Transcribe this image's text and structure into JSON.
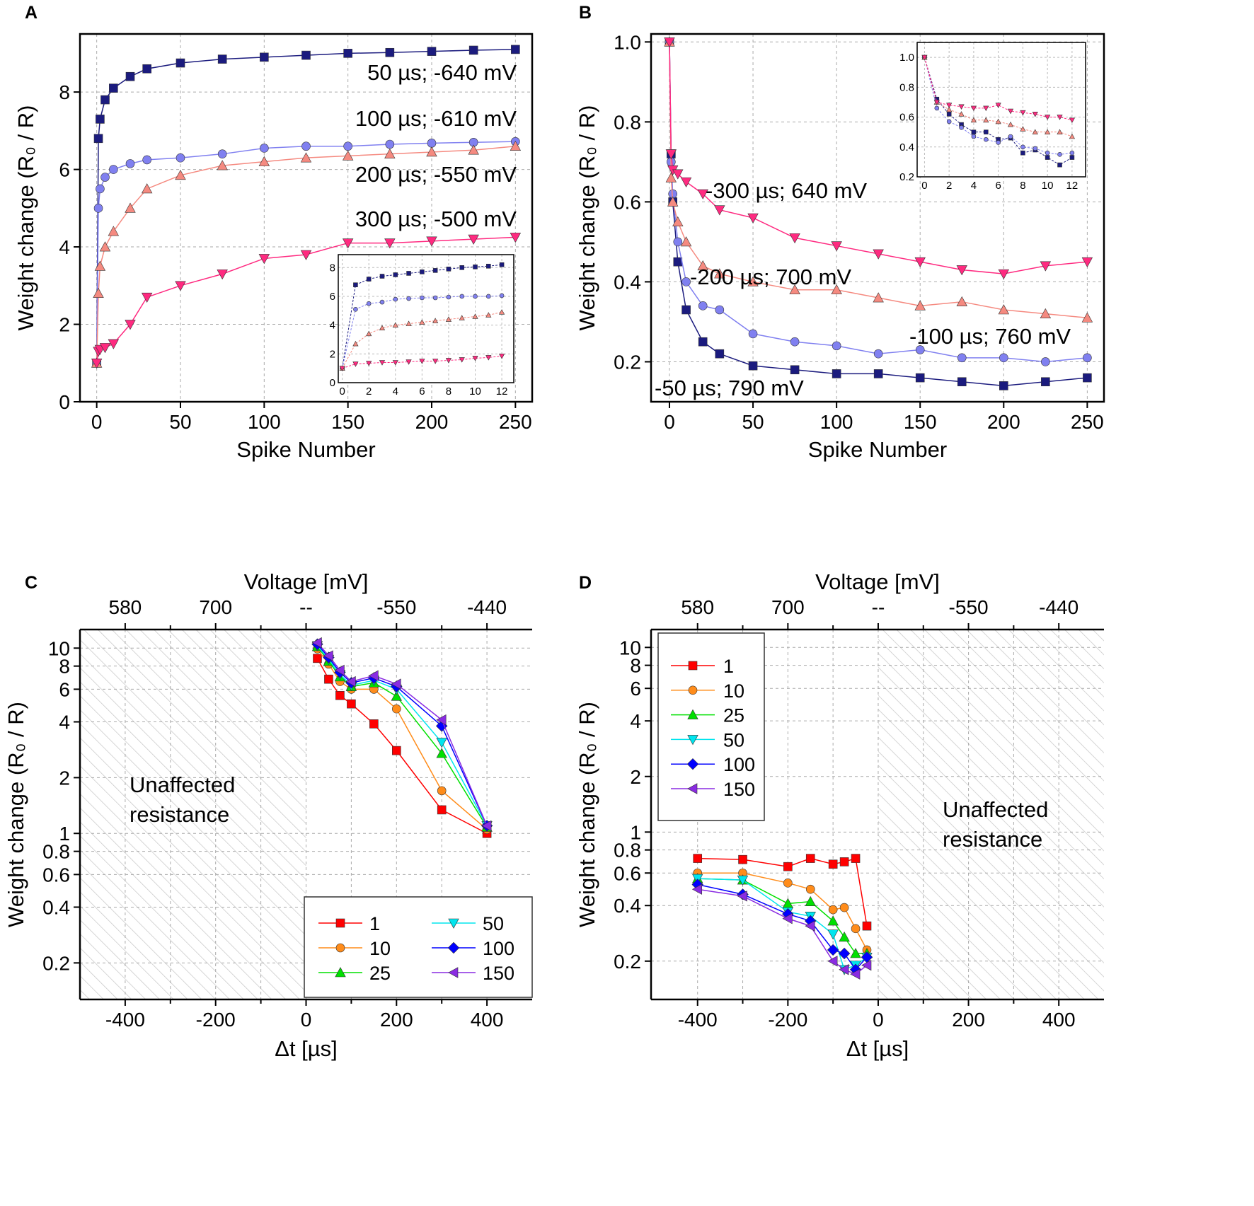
{
  "chart_data": [
    {
      "panel": "A",
      "type": "scatter",
      "xlabel": "Spike Number",
      "ylabel": "Weight change (R₀ / R)",
      "xlim": [
        -10,
        260
      ],
      "ylim": [
        0,
        9.5
      ],
      "log_y": false,
      "grid": true,
      "xticks": [
        0,
        50,
        100,
        150,
        200,
        250
      ],
      "yticks": [
        0,
        2,
        4,
        6,
        8
      ],
      "x": [
        0,
        1,
        2,
        5,
        10,
        20,
        30,
        50,
        75,
        100,
        125,
        150,
        175,
        200,
        225,
        250
      ],
      "series": [
        {
          "name": "50 µs; -640 mV",
          "color": "#1b1b7e",
          "marker": "square",
          "values": [
            1,
            6.8,
            7.3,
            7.8,
            8.1,
            8.4,
            8.6,
            8.75,
            8.85,
            8.9,
            8.95,
            9.0,
            9.02,
            9.05,
            9.08,
            9.1
          ]
        },
        {
          "name": "100 µs; -610 mV",
          "color": "#8080f0",
          "marker": "circle",
          "values": [
            1,
            5.0,
            5.5,
            5.8,
            6.0,
            6.15,
            6.25,
            6.3,
            6.4,
            6.55,
            6.6,
            6.6,
            6.65,
            6.68,
            6.7,
            6.72
          ]
        },
        {
          "name": "200 µs; -550 mV",
          "color": "#f58a80",
          "marker": "triangle-up",
          "values": [
            1,
            2.8,
            3.5,
            4.0,
            4.4,
            5.0,
            5.5,
            5.85,
            6.1,
            6.2,
            6.3,
            6.35,
            6.4,
            6.45,
            6.5,
            6.6
          ]
        },
        {
          "name": "300 µs; -500 mV",
          "color": "#ff2a80",
          "marker": "triangle-down",
          "values": [
            1,
            1.3,
            1.35,
            1.4,
            1.5,
            2.0,
            2.7,
            3.0,
            3.3,
            3.7,
            3.8,
            4.1,
            4.1,
            4.15,
            4.2,
            4.25
          ]
        }
      ],
      "inset": {
        "xlim": [
          -0.3,
          12.9
        ],
        "ylim": [
          0,
          8.9
        ],
        "xticks": [
          0,
          2,
          4,
          6,
          8,
          10,
          12
        ],
        "yticks": [
          0,
          2,
          4,
          6,
          8
        ],
        "x": [
          0,
          1,
          2,
          3,
          4,
          5,
          6,
          7,
          8,
          9,
          10,
          11,
          12
        ],
        "values": [
          [
            1,
            6.8,
            7.2,
            7.4,
            7.5,
            7.6,
            7.7,
            7.8,
            7.9,
            8.0,
            8.05,
            8.1,
            8.2
          ],
          [
            1,
            5.1,
            5.5,
            5.6,
            5.8,
            5.85,
            5.9,
            5.9,
            5.95,
            6.0,
            6.0,
            6.0,
            6.05
          ],
          [
            1,
            2.7,
            3.4,
            3.8,
            4.0,
            4.1,
            4.2,
            4.3,
            4.4,
            4.5,
            4.6,
            4.7,
            4.9
          ],
          [
            1,
            1.3,
            1.35,
            1.4,
            1.4,
            1.45,
            1.5,
            1.5,
            1.55,
            1.6,
            1.7,
            1.75,
            1.85
          ]
        ]
      }
    },
    {
      "panel": "B",
      "type": "scatter",
      "xlabel": "Spike Number",
      "ylabel": "Weight change (R₀ / R)",
      "xlim": [
        -11,
        260
      ],
      "ylim": [
        0.1,
        1.02
      ],
      "log_y": false,
      "grid": true,
      "xticks": [
        0,
        50,
        100,
        150,
        200,
        250
      ],
      "yticks": [
        0.2,
        0.4,
        0.6,
        0.8,
        1.0
      ],
      "x": [
        0,
        1,
        2,
        5,
        10,
        20,
        30,
        50,
        75,
        100,
        125,
        150,
        175,
        200,
        225,
        250
      ],
      "series": [
        {
          "name": "-50 µs; 790 mV",
          "color": "#1b1b7e",
          "marker": "square",
          "values": [
            1,
            0.72,
            0.6,
            0.45,
            0.33,
            0.25,
            0.22,
            0.19,
            0.18,
            0.17,
            0.17,
            0.16,
            0.15,
            0.14,
            0.15,
            0.16
          ]
        },
        {
          "name": "-100 µs; 760 mV",
          "color": "#8080f0",
          "marker": "circle",
          "values": [
            1,
            0.7,
            0.62,
            0.5,
            0.4,
            0.34,
            0.33,
            0.27,
            0.25,
            0.24,
            0.22,
            0.23,
            0.21,
            0.21,
            0.2,
            0.21
          ]
        },
        {
          "name": "-200 µs; 700 mV",
          "color": "#f58a80",
          "marker": "triangle-up",
          "values": [
            1,
            0.66,
            0.6,
            0.55,
            0.5,
            0.44,
            0.42,
            0.4,
            0.38,
            0.38,
            0.36,
            0.34,
            0.35,
            0.33,
            0.32,
            0.31
          ]
        },
        {
          "name": "-300 µs; 640 mV",
          "color": "#ff2a80",
          "marker": "triangle-down",
          "values": [
            1,
            0.72,
            0.68,
            0.67,
            0.65,
            0.62,
            0.58,
            0.56,
            0.51,
            0.49,
            0.47,
            0.45,
            0.43,
            0.42,
            0.44,
            0.45
          ]
        }
      ],
      "inset": {
        "xlim": [
          -0.6,
          13.1
        ],
        "ylim": [
          0.2,
          1.1
        ],
        "xticks": [
          0,
          2,
          4,
          6,
          8,
          10,
          12
        ],
        "yticks": [
          0.2,
          0.4,
          0.6,
          0.8,
          1.0
        ],
        "x": [
          0,
          1,
          2,
          3,
          4,
          5,
          6,
          7,
          8,
          9,
          10,
          11,
          12
        ],
        "values": [
          [
            1,
            0.72,
            0.62,
            0.55,
            0.5,
            0.5,
            0.45,
            0.46,
            0.36,
            0.38,
            0.33,
            0.28,
            0.33
          ],
          [
            1,
            0.66,
            0.57,
            0.53,
            0.47,
            0.45,
            0.43,
            0.47,
            0.4,
            0.39,
            0.36,
            0.35,
            0.36
          ],
          [
            1,
            0.7,
            0.65,
            0.62,
            0.58,
            0.58,
            0.57,
            0.55,
            0.52,
            0.5,
            0.5,
            0.5,
            0.47
          ],
          [
            1,
            0.7,
            0.68,
            0.67,
            0.66,
            0.66,
            0.68,
            0.64,
            0.63,
            0.62,
            0.6,
            0.6,
            0.58
          ]
        ]
      }
    },
    {
      "panel": "C",
      "type": "line",
      "xlabel": "Δt [µs]",
      "ylabel": "Weight change (R₀ / R)",
      "x2label": "Voltage [mV]",
      "xlim": [
        -500,
        500
      ],
      "ylim": [
        0.127,
        12.6
      ],
      "log_y": true,
      "grid": true,
      "xticks": [
        -400,
        -200,
        0,
        200,
        400
      ],
      "x2ticks": [
        {
          "at": -400,
          "label": "580"
        },
        {
          "at": -200,
          "label": "700"
        },
        {
          "at": 0,
          "label": "--"
        },
        {
          "at": 200,
          "label": "-550"
        },
        {
          "at": 400,
          "label": "-440"
        }
      ],
      "yticks": [
        0.2,
        0.4,
        0.6,
        0.8,
        1,
        2,
        4,
        6,
        8,
        10
      ],
      "shaded_region": {
        "from": -500,
        "to": 0,
        "label": [
          "Unaffected",
          "resistance"
        ]
      },
      "legend_placement": "bottom-right",
      "x": [
        25,
        50,
        75,
        100,
        150,
        200,
        300,
        400
      ],
      "series": [
        {
          "name": "1",
          "color": "#ff0000",
          "marker": "square",
          "values": [
            8.8,
            6.8,
            5.55,
            5.0,
            3.9,
            2.8,
            1.34,
            1.0
          ]
        },
        {
          "name": "10",
          "color": "#ff8c1a",
          "marker": "circle",
          "values": [
            9.9,
            8.2,
            6.6,
            6.0,
            6.0,
            4.7,
            1.7,
            1.05
          ]
        },
        {
          "name": "25",
          "color": "#00e000",
          "marker": "triangle-up",
          "values": [
            10.2,
            8.5,
            7.0,
            6.2,
            6.5,
            5.5,
            2.7,
            1.08
          ]
        },
        {
          "name": "50",
          "color": "#00e5ee",
          "marker": "triangle-down",
          "values": [
            10.3,
            8.7,
            7.2,
            6.3,
            6.7,
            6.0,
            3.1,
            1.1
          ]
        },
        {
          "name": "100",
          "color": "#0000ff",
          "marker": "diamond",
          "values": [
            10.5,
            8.9,
            7.4,
            6.5,
            6.9,
            6.2,
            3.8,
            1.1
          ]
        },
        {
          "name": "150",
          "color": "#8a2be2",
          "marker": "triangle-left",
          "values": [
            10.7,
            9.1,
            7.6,
            6.6,
            7.1,
            6.4,
            4.1,
            1.1
          ]
        }
      ]
    },
    {
      "panel": "D",
      "type": "line",
      "xlabel": "Δt [µs]",
      "ylabel": "Weight change (R₀ / R)",
      "x2label": "Voltage [mV]",
      "xlim": [
        -503,
        500
      ],
      "ylim": [
        0.124,
        12.5
      ],
      "log_y": true,
      "grid": true,
      "xticks": [
        -400,
        -200,
        0,
        200,
        400
      ],
      "x2ticks": [
        {
          "at": -400,
          "label": "580"
        },
        {
          "at": -200,
          "label": "700"
        },
        {
          "at": 0,
          "label": "--"
        },
        {
          "at": 200,
          "label": "-550"
        },
        {
          "at": 400,
          "label": "-440"
        }
      ],
      "yticks": [
        0.2,
        0.4,
        0.6,
        0.8,
        1,
        2,
        4,
        6,
        8,
        10
      ],
      "shaded_region": {
        "from": 0,
        "to": 500,
        "label": [
          "Unaffected",
          "resistance"
        ]
      },
      "legend_placement": "top-left",
      "x": [
        -400,
        -300,
        -200,
        -150,
        -100,
        -75,
        -50,
        -25
      ],
      "series": [
        {
          "name": "1",
          "color": "#ff0000",
          "marker": "square",
          "values": [
            0.72,
            0.71,
            0.65,
            0.72,
            0.67,
            0.69,
            0.72,
            0.31
          ]
        },
        {
          "name": "10",
          "color": "#ff8c1a",
          "marker": "circle",
          "values": [
            0.6,
            0.6,
            0.53,
            0.49,
            0.38,
            0.39,
            0.3,
            0.23
          ]
        },
        {
          "name": "25",
          "color": "#00e000",
          "marker": "triangle-up",
          "values": [
            0.56,
            0.55,
            0.41,
            0.42,
            0.33,
            0.27,
            0.22,
            0.22
          ]
        },
        {
          "name": "50",
          "color": "#00e5ee",
          "marker": "triangle-down",
          "values": [
            0.56,
            0.55,
            0.37,
            0.35,
            0.28,
            0.18,
            0.19,
            0.21
          ]
        },
        {
          "name": "100",
          "color": "#0000ff",
          "marker": "diamond",
          "values": [
            0.52,
            0.46,
            0.36,
            0.33,
            0.23,
            0.22,
            0.18,
            0.21
          ]
        },
        {
          "name": "150",
          "color": "#8a2be2",
          "marker": "triangle-left",
          "values": [
            0.49,
            0.45,
            0.34,
            0.31,
            0.2,
            0.18,
            0.17,
            0.19
          ]
        }
      ]
    }
  ]
}
